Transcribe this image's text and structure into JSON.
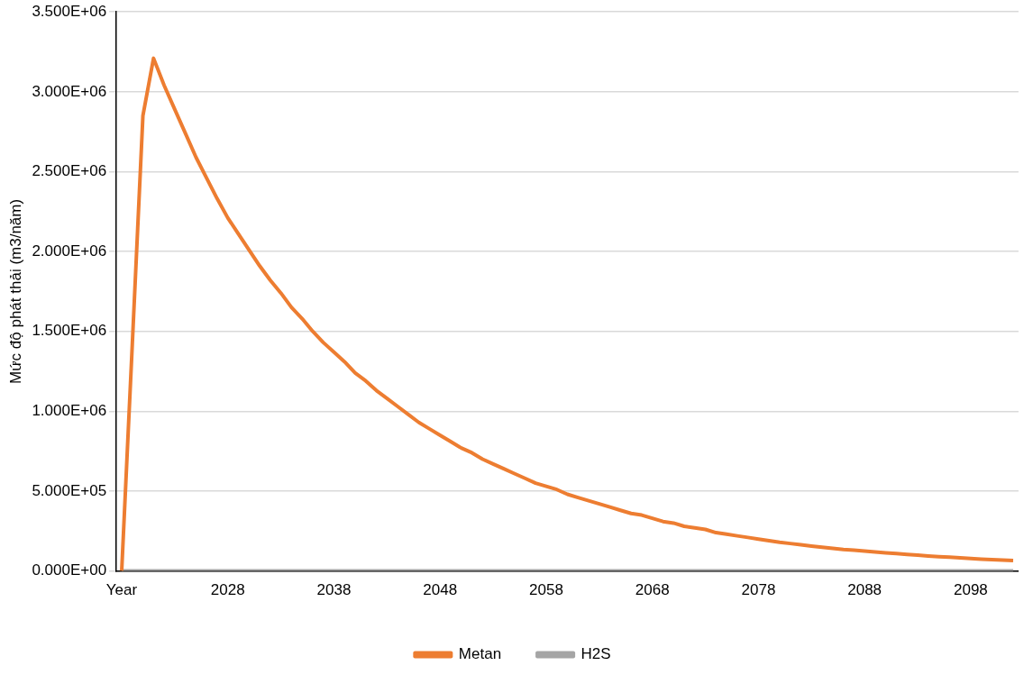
{
  "chart_data": {
    "type": "line",
    "ylabel": "Mức độ phát thải (m3/năm)",
    "categories": [
      "Year",
      null,
      null,
      null,
      null,
      null,
      null,
      null,
      null,
      null,
      "2028",
      null,
      null,
      null,
      null,
      null,
      null,
      null,
      null,
      null,
      "2038",
      null,
      null,
      null,
      null,
      null,
      null,
      null,
      null,
      null,
      "2048",
      null,
      null,
      null,
      null,
      null,
      null,
      null,
      null,
      null,
      "2058",
      null,
      null,
      null,
      null,
      null,
      null,
      null,
      null,
      null,
      "2068",
      null,
      null,
      null,
      null,
      null,
      null,
      null,
      null,
      null,
      "2078",
      null,
      null,
      null,
      null,
      null,
      null,
      null,
      null,
      null,
      "2088",
      null,
      null,
      null,
      null,
      null,
      null,
      null,
      null,
      null,
      "2098",
      null,
      null,
      null,
      null
    ],
    "series": [
      {
        "name": "Metan",
        "color": "#ed7d31",
        "values": [
          0,
          1420000,
          2850000,
          3210000,
          3040000,
          2890000,
          2740000,
          2590000,
          2460000,
          2330000,
          2210000,
          2110000,
          2010000,
          1910000,
          1820000,
          1740000,
          1650000,
          1580000,
          1500000,
          1430000,
          1370000,
          1310000,
          1240000,
          1190000,
          1130000,
          1080000,
          1030000,
          980000,
          930000,
          890000,
          850000,
          810000,
          770000,
          740000,
          700000,
          670000,
          640000,
          610000,
          580000,
          550000,
          530000,
          510000,
          480000,
          460000,
          440000,
          420000,
          400000,
          380000,
          360000,
          350000,
          330000,
          310000,
          300000,
          280000,
          270000,
          260000,
          240000,
          230000,
          220000,
          210000,
          200000,
          190000,
          180000,
          172000,
          164000,
          156000,
          149000,
          142000,
          135000,
          130000,
          125000,
          119000,
          114000,
          109000,
          104000,
          99000,
          94000,
          90000,
          86000,
          82000,
          78000,
          74000,
          71000,
          68000,
          65000
        ]
      },
      {
        "name": "H2S",
        "color": "#a5a5a5",
        "values": [
          0,
          0,
          0,
          0,
          0,
          0,
          0,
          0,
          0,
          0,
          0,
          0,
          0,
          0,
          0,
          0,
          0,
          0,
          0,
          0,
          0,
          0,
          0,
          0,
          0,
          0,
          0,
          0,
          0,
          0,
          0,
          0,
          0,
          0,
          0,
          0,
          0,
          0,
          0,
          0,
          0,
          0,
          0,
          0,
          0,
          0,
          0,
          0,
          0,
          0,
          0,
          0,
          0,
          0,
          0,
          0,
          0,
          0,
          0,
          0,
          0,
          0,
          0,
          0,
          0,
          0,
          0,
          0,
          0,
          0,
          0,
          0,
          0,
          0,
          0,
          0,
          0,
          0,
          0,
          0,
          0,
          0,
          0,
          0,
          0
        ]
      }
    ],
    "ylim": [
      0,
      3500000
    ],
    "yticks": [
      {
        "value": 0,
        "label": "0.000E+00"
      },
      {
        "value": 500000,
        "label": "5.000E+05"
      },
      {
        "value": 1000000,
        "label": "1.000E+06"
      },
      {
        "value": 1500000,
        "label": "1.500E+06"
      },
      {
        "value": 2000000,
        "label": "2.000E+06"
      },
      {
        "value": 2500000,
        "label": "2.500E+06"
      },
      {
        "value": 3000000,
        "label": "3.000E+06"
      },
      {
        "value": 3500000,
        "label": "3.500E+06"
      }
    ],
    "grid": "y",
    "legend": "bottom",
    "marker": "none",
    "line_style": "solid"
  }
}
